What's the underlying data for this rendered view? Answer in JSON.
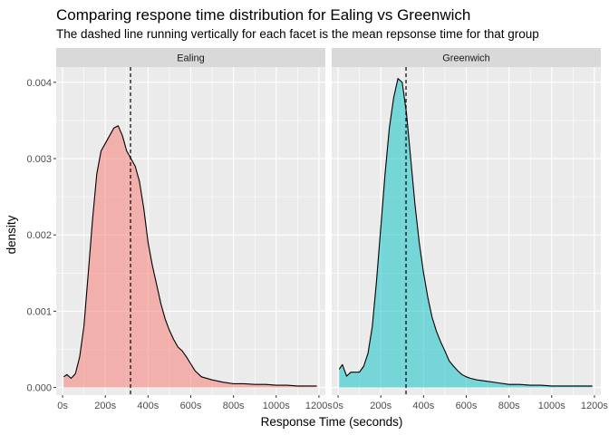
{
  "chart_data": {
    "type": "area",
    "title": "Comparing respone time distribution for Ealing vs Greenwich",
    "subtitle": "The dashed line running vertically for each facet is the mean repsonse time for that group",
    "xlabel": "Response Time (seconds)",
    "ylabel": "density",
    "xlim": [
      -30,
      1230
    ],
    "ylim": [
      -0.0001,
      0.0042
    ],
    "x_ticks": [
      0,
      200,
      400,
      600,
      800,
      1000,
      1200
    ],
    "x_tick_labels": [
      "0s",
      "200s",
      "400s",
      "600s",
      "800s",
      "1000s",
      "1200s"
    ],
    "y_ticks": [
      0,
      0.001,
      0.002,
      0.003,
      0.004
    ],
    "y_tick_labels": [
      "0.000",
      "0.001",
      "0.002",
      "0.003",
      "0.004"
    ],
    "grid": true,
    "colors": {
      "panel_bg": "#ebebeb",
      "grid": "#ffffff",
      "strip_bg": "#d9d9d9",
      "outline": "#000000"
    },
    "facets": [
      {
        "label": "Ealing",
        "fill": "#f8766d",
        "mean": 318,
        "x": [
          5,
          20,
          40,
          60,
          80,
          100,
          120,
          140,
          160,
          180,
          200,
          220,
          240,
          260,
          280,
          300,
          320,
          340,
          360,
          380,
          400,
          420,
          440,
          460,
          480,
          500,
          520,
          540,
          560,
          580,
          600,
          620,
          650,
          700,
          750,
          800,
          850,
          900,
          950,
          1000,
          1050,
          1100,
          1150,
          1190
        ],
        "y": [
          0.00014,
          0.00017,
          0.00012,
          0.00018,
          0.0004,
          0.0008,
          0.0015,
          0.0022,
          0.0028,
          0.0031,
          0.0032,
          0.0033,
          0.0034,
          0.00343,
          0.0033,
          0.0031,
          0.003,
          0.0029,
          0.0027,
          0.00235,
          0.0019,
          0.0016,
          0.00135,
          0.0011,
          0.0009,
          0.00075,
          0.00063,
          0.00053,
          0.00048,
          0.0004,
          0.00031,
          0.00022,
          0.00014,
          0.0001,
          7e-05,
          5e-05,
          5e-05,
          4e-05,
          4e-05,
          3e-05,
          3e-05,
          2e-05,
          2e-05,
          2e-05
        ]
      },
      {
        "label": "Greenwich",
        "fill": "#00bfc4",
        "mean": 318,
        "x": [
          5,
          20,
          40,
          60,
          80,
          100,
          120,
          140,
          160,
          180,
          200,
          220,
          240,
          260,
          280,
          300,
          320,
          340,
          360,
          380,
          400,
          420,
          440,
          460,
          480,
          500,
          520,
          540,
          560,
          580,
          600,
          620,
          650,
          700,
          750,
          800,
          850,
          900,
          950,
          1000,
          1050,
          1100,
          1150,
          1190
        ],
        "y": [
          0.00024,
          0.0003,
          0.00015,
          0.0002,
          0.0002,
          0.0002,
          0.00028,
          0.00045,
          0.0008,
          0.0014,
          0.0021,
          0.0028,
          0.0034,
          0.0038,
          0.00405,
          0.004,
          0.0036,
          0.003,
          0.0024,
          0.0019,
          0.0015,
          0.00118,
          0.00092,
          0.00074,
          0.0006,
          0.00048,
          0.00035,
          0.00028,
          0.00022,
          0.00017,
          0.00014,
          0.00012,
          0.0001,
          8e-05,
          6e-05,
          4e-05,
          4e-05,
          3e-05,
          3e-05,
          2e-05,
          2e-05,
          2e-05,
          2e-05,
          2e-05
        ]
      }
    ]
  }
}
